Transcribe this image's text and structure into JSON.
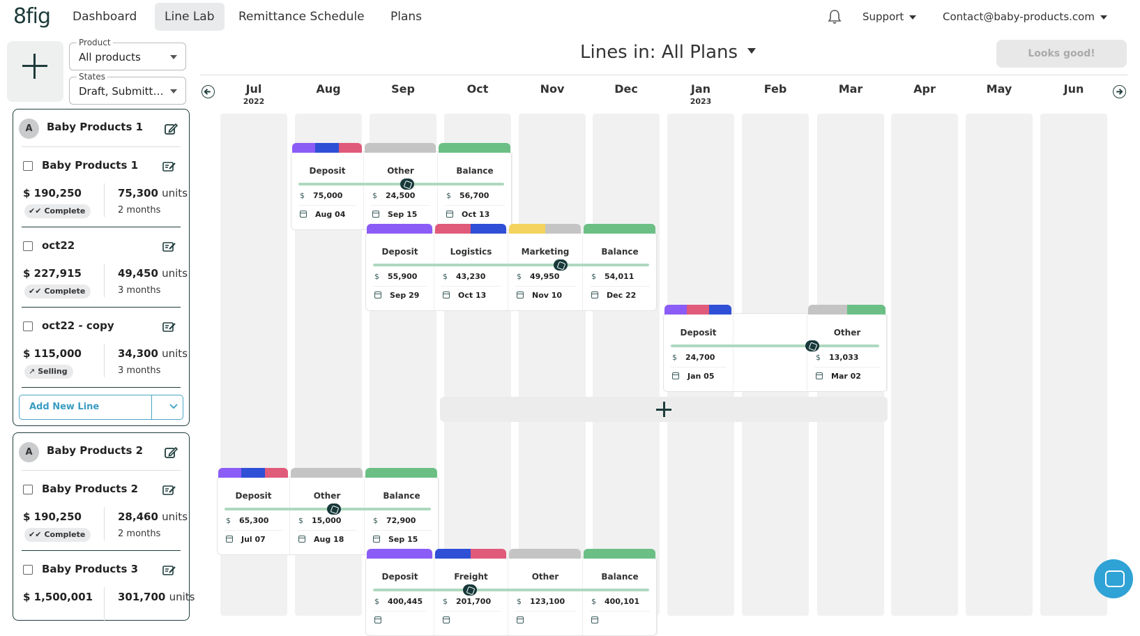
{
  "nav": {
    "logo": "8fig",
    "items": [
      "Dashboard",
      "Line Lab",
      "Remittance Schedule",
      "Plans"
    ],
    "support": "Support",
    "account": "Contact@baby-products.com"
  },
  "filters": {
    "product_label": "Product",
    "product_value": "All products",
    "states_label": "States",
    "states_value": "Draft, Submitte..."
  },
  "plans": [
    {
      "avatar": "A",
      "title": "Baby Products 1",
      "lines": [
        {
          "name": "Baby Products 1",
          "amount": "$ 190,250",
          "units": "75,300",
          "units_label": "units",
          "status": "Complete",
          "months": "2 months"
        },
        {
          "name": "oct22",
          "amount": "$ 227,915",
          "units": "49,450",
          "units_label": "units",
          "status": "Complete",
          "months": "3 months"
        },
        {
          "name": "oct22 - copy",
          "amount": "$ 115,000",
          "units": "34,300",
          "units_label": "units",
          "status": "Selling",
          "months": "3 months"
        }
      ],
      "add_line": "Add New Line"
    },
    {
      "avatar": "A",
      "title": "Baby Products 2",
      "lines": [
        {
          "name": "Baby Products 2",
          "amount": "$ 190,250",
          "units": "28,460",
          "units_label": "units",
          "status": "Complete",
          "months": "2 months"
        },
        {
          "name": "Baby Products 3",
          "amount": "$ 1,500,001",
          "units": "301,700",
          "units_label": "units",
          "status": "",
          "months": ""
        }
      ]
    }
  ],
  "main": {
    "title": "Lines in: All Plans",
    "looks_good": "Looks good!",
    "months": [
      {
        "m": "Jul",
        "y": "2022"
      },
      {
        "m": "Aug",
        "y": ""
      },
      {
        "m": "Sep",
        "y": ""
      },
      {
        "m": "Oct",
        "y": ""
      },
      {
        "m": "Nov",
        "y": ""
      },
      {
        "m": "Dec",
        "y": ""
      },
      {
        "m": "Jan",
        "y": "2023"
      },
      {
        "m": "Feb",
        "y": ""
      },
      {
        "m": "Mar",
        "y": ""
      },
      {
        "m": "Apr",
        "y": ""
      },
      {
        "m": "May",
        "y": ""
      },
      {
        "m": "Jun",
        "y": ""
      }
    ]
  },
  "lines": [
    {
      "cells": [
        {
          "label": "Deposit",
          "amount": "75,000",
          "date": "Aug 04"
        },
        {
          "label": "Other",
          "amount": "24,500",
          "date": "Sep 15"
        },
        {
          "label": "Balance",
          "amount": "56,700",
          "date": "Oct 13"
        }
      ]
    },
    {
      "cells": [
        {
          "label": "Deposit",
          "amount": "55,900",
          "date": "Sep 29"
        },
        {
          "label": "Logistics",
          "amount": "43,230",
          "date": "Oct 13"
        },
        {
          "label": "Marketing",
          "amount": "49,950",
          "date": "Nov 10"
        },
        {
          "label": "Balance",
          "amount": "54,011",
          "date": "Dec 22"
        }
      ]
    },
    {
      "cells": [
        {
          "label": "Deposit",
          "amount": "24,700",
          "date": "Jan 05"
        },
        {
          "label": "Other",
          "amount": "13,033",
          "date": "Mar 02"
        }
      ]
    },
    {
      "cells": [
        {
          "label": "Deposit",
          "amount": "65,300",
          "date": "Jul 07"
        },
        {
          "label": "Other",
          "amount": "15,000",
          "date": "Aug 18"
        },
        {
          "label": "Balance",
          "amount": "72,900",
          "date": "Sep 15"
        }
      ]
    },
    {
      "cells": [
        {
          "label": "Deposit",
          "amount": "400,445",
          "date": ""
        },
        {
          "label": "Freight",
          "amount": "201,700",
          "date": ""
        },
        {
          "label": "Other",
          "amount": "123,100",
          "date": ""
        },
        {
          "label": "Balance",
          "amount": "400,101",
          "date": ""
        }
      ]
    }
  ],
  "currency_symbol": "$",
  "colors": {
    "purple": "#8b5cf6",
    "blue": "#2f4fd6",
    "pink": "#e05a7a",
    "grey": "#c4c4c4",
    "green": "#6bbf85",
    "yellow": "#f4d35e",
    "brand_dark": "#1e3b3b",
    "accent_blue": "#3a9cc2"
  }
}
